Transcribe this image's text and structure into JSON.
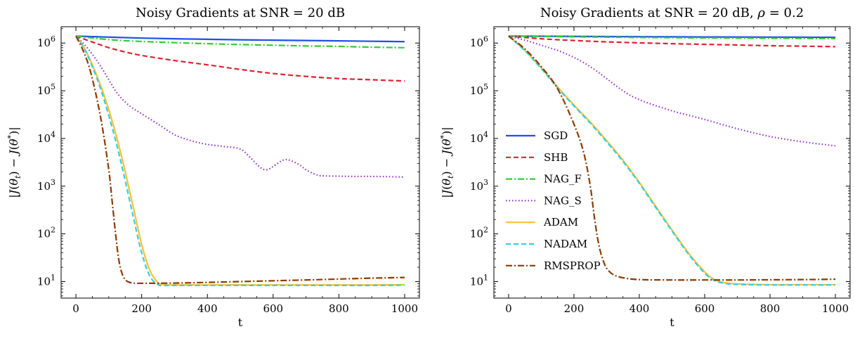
{
  "chart_data": [
    {
      "type": "line",
      "title": "Noisy Gradients at SNR = 20 dB",
      "xlabel": "t",
      "ylabel": "|J(θ_t) − J(θ*)|",
      "yscale": "log",
      "xlim": [
        -45,
        1045
      ],
      "ylim": [
        4.5,
        2200000
      ],
      "xticks": [
        0,
        200,
        400,
        600,
        800,
        1000
      ],
      "xtick_labels": [
        "0",
        "200",
        "400",
        "600",
        "800",
        "1000"
      ],
      "yticks": [
        10,
        100,
        1000,
        10000,
        100000,
        1000000
      ],
      "ytick_labels": [
        {
          "b": "10",
          "e": "1"
        },
        {
          "b": "10",
          "e": "2"
        },
        {
          "b": "10",
          "e": "3"
        },
        {
          "b": "10",
          "e": "4"
        },
        {
          "b": "10",
          "e": "5"
        },
        {
          "b": "10",
          "e": "6"
        }
      ],
      "grid": false,
      "legend": null,
      "series": [
        {
          "name": "SGD",
          "color": "#1f4fe8",
          "dash": "",
          "x": [
            0,
            100,
            200,
            300,
            400,
            500,
            600,
            700,
            800,
            900,
            1000
          ],
          "y": [
            1400000,
            1330000,
            1270000,
            1230000,
            1200000,
            1170000,
            1150000,
            1130000,
            1110000,
            1090000,
            1070000
          ]
        },
        {
          "name": "SHB",
          "color": "#e02030",
          "dash": "7,4",
          "x": [
            0,
            50,
            100,
            150,
            200,
            300,
            400,
            500,
            600,
            700,
            800,
            900,
            1000
          ],
          "y": [
            1400000,
            1050000,
            800000,
            650000,
            550000,
            430000,
            350000,
            280000,
            230000,
            200000,
            180000,
            170000,
            160000
          ]
        },
        {
          "name": "NAG_F",
          "color": "#32cd32",
          "dash": "9,3,2,3",
          "x": [
            0,
            100,
            200,
            300,
            400,
            500,
            600,
            700,
            800,
            900,
            1000
          ],
          "y": [
            1400000,
            1180000,
            1080000,
            1020000,
            970000,
            930000,
            900000,
            870000,
            850000,
            820000,
            800000
          ]
        },
        {
          "name": "NAG_S",
          "color": "#9932cc",
          "dash": "1.5,3",
          "x": [
            0,
            25,
            50,
            75,
            100,
            125,
            150,
            175,
            200,
            250,
            300,
            350,
            400,
            450,
            500,
            530,
            560,
            580,
            600,
            630,
            650,
            680,
            700,
            730,
            750,
            800,
            850,
            900,
            950,
            1000
          ],
          "y": [
            1400000,
            950000,
            580000,
            330000,
            170000,
            90000,
            58000,
            42000,
            33000,
            20000,
            12000,
            9000,
            7500,
            6800,
            6000,
            4000,
            2500,
            2200,
            2600,
            3500,
            3500,
            2800,
            2200,
            1750,
            1650,
            1620,
            1600,
            1600,
            1580,
            1550
          ]
        },
        {
          "name": "ADAM",
          "color": "#ffc030",
          "dash": "",
          "x": [
            0,
            25,
            50,
            75,
            100,
            125,
            150,
            175,
            200,
            225,
            250,
            265,
            280,
            300,
            400,
            500,
            600,
            700,
            800,
            900,
            1000
          ],
          "y": [
            1400000,
            800000,
            350000,
            130000,
            40000,
            10000,
            2000,
            350,
            60,
            17,
            9.5,
            8.7,
            8.5,
            8.5,
            8.5,
            8.5,
            8.5,
            8.5,
            8.5,
            8.5,
            8.6
          ]
        },
        {
          "name": "NADAM",
          "color": "#30d0e8",
          "dash": "7,4",
          "x": [
            0,
            25,
            50,
            75,
            100,
            125,
            150,
            175,
            200,
            225,
            250,
            265,
            280,
            300,
            400,
            500,
            600,
            700,
            800,
            900,
            1000
          ],
          "y": [
            1400000,
            780000,
            320000,
            110000,
            30000,
            7000,
            1300,
            220,
            40,
            13,
            8.6,
            8.3,
            8.3,
            8.3,
            8.3,
            8.3,
            8.3,
            8.3,
            8.3,
            8.3,
            8.4
          ]
        },
        {
          "name": "RMSPROP",
          "color": "#8b3a00",
          "dash": "9,3,2,3",
          "x": [
            0,
            20,
            40,
            60,
            80,
            100,
            110,
            120,
            130,
            140,
            150,
            160,
            175,
            200,
            300,
            400,
            500,
            600,
            700,
            800,
            900,
            1000
          ],
          "y": [
            1400000,
            750000,
            320000,
            90000,
            18000,
            2200,
            500,
            110,
            30,
            15,
            11,
            9.8,
            9.3,
            9.2,
            9.3,
            9.6,
            10,
            10.4,
            10.8,
            11.3,
            11.8,
            12.2
          ]
        }
      ]
    },
    {
      "type": "line",
      "title": "Noisy Gradients at SNR = 20 dB, ρ = 0.2",
      "xlabel": "t",
      "ylabel": "|J(θ_t) − J(θ*)|",
      "yscale": "log",
      "xlim": [
        -45,
        1045
      ],
      "ylim": [
        4.5,
        2200000
      ],
      "xticks": [
        0,
        200,
        400,
        600,
        800,
        1000
      ],
      "xtick_labels": [
        "0",
        "200",
        "400",
        "600",
        "800",
        "1000"
      ],
      "yticks": [
        10,
        100,
        1000,
        10000,
        100000,
        1000000
      ],
      "ytick_labels": [
        {
          "b": "10",
          "e": "1"
        },
        {
          "b": "10",
          "e": "2"
        },
        {
          "b": "10",
          "e": "3"
        },
        {
          "b": "10",
          "e": "4"
        },
        {
          "b": "10",
          "e": "5"
        },
        {
          "b": "10",
          "e": "6"
        }
      ],
      "grid": false,
      "legend": "center-left",
      "series": [
        {
          "name": "SGD",
          "color": "#1f4fe8",
          "dash": "",
          "x": [
            0,
            200,
            400,
            600,
            800,
            1000
          ],
          "y": [
            1400000,
            1380000,
            1360000,
            1340000,
            1330000,
            1320000
          ]
        },
        {
          "name": "SHB",
          "color": "#e02030",
          "dash": "7,4",
          "x": [
            0,
            100,
            200,
            300,
            400,
            500,
            600,
            700,
            800,
            900,
            1000
          ],
          "y": [
            1400000,
            1230000,
            1130000,
            1060000,
            1010000,
            970000,
            940000,
            910000,
            880000,
            860000,
            840000
          ]
        },
        {
          "name": "NAG_F",
          "color": "#32cd32",
          "dash": "9,3,2,3",
          "x": [
            0,
            200,
            400,
            600,
            800,
            1000
          ],
          "y": [
            1400000,
            1350000,
            1310000,
            1280000,
            1260000,
            1240000
          ]
        },
        {
          "name": "NAG_S",
          "color": "#9932cc",
          "dash": "1.5,3",
          "x": [
            0,
            50,
            100,
            150,
            200,
            250,
            300,
            350,
            400,
            500,
            600,
            700,
            800,
            900,
            1000
          ],
          "y": [
            1400000,
            1150000,
            900000,
            700000,
            500000,
            320000,
            180000,
            100000,
            65000,
            38000,
            25000,
            16000,
            11000,
            8500,
            7000
          ]
        },
        {
          "name": "ADAM",
          "color": "#ffc030",
          "dash": "",
          "x": [
            0,
            50,
            100,
            150,
            200,
            250,
            300,
            350,
            400,
            450,
            500,
            550,
            600,
            630,
            660,
            700,
            800,
            900,
            1000
          ],
          "y": [
            1400000,
            700000,
            300000,
            120000,
            50000,
            22000,
            9000,
            3500,
            1200,
            380,
            120,
            40,
            16,
            11,
            9.5,
            8.9,
            8.6,
            8.6,
            8.6
          ]
        },
        {
          "name": "NADAM",
          "color": "#30d0e8",
          "dash": "7,4",
          "x": [
            0,
            50,
            100,
            150,
            200,
            250,
            300,
            350,
            400,
            450,
            500,
            550,
            600,
            630,
            660,
            700,
            800,
            900,
            1000
          ],
          "y": [
            1400000,
            690000,
            290000,
            115000,
            48000,
            21000,
            8500,
            3300,
            1150,
            360,
            115,
            38,
            15,
            10.5,
            9.2,
            8.7,
            8.5,
            8.5,
            8.5
          ]
        },
        {
          "name": "RMSPROP",
          "color": "#8b3a00",
          "dash": "9,3,2,3",
          "x": [
            0,
            50,
            100,
            150,
            200,
            230,
            250,
            260,
            270,
            280,
            290,
            300,
            320,
            350,
            400,
            500,
            600,
            700,
            800,
            900,
            1000
          ],
          "y": [
            1400000,
            750000,
            320000,
            110000,
            20000,
            5000,
            1000,
            300,
            100,
            45,
            27,
            19,
            14,
            12,
            11,
            10.8,
            10.8,
            10.8,
            10.9,
            11,
            11.2
          ]
        }
      ]
    }
  ]
}
